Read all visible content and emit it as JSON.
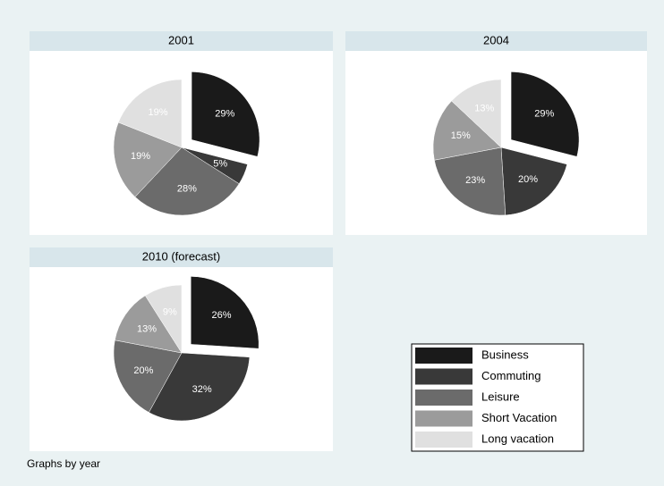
{
  "chart_data": [
    {
      "type": "pie",
      "title": "2001",
      "categories": [
        "Business",
        "Commuting",
        "Leisure",
        "Short Vacation",
        "Long vacation"
      ],
      "values": [
        29,
        5,
        28,
        19,
        19
      ],
      "value_labels": [
        "29%",
        "5%",
        "28%",
        "19%",
        "19%"
      ],
      "colors": [
        "#1a1a1a",
        "#393939",
        "#6b6b6b",
        "#9b9b9b",
        "#e0e0e0"
      ],
      "explode": [
        true,
        false,
        false,
        false,
        false
      ]
    },
    {
      "type": "pie",
      "title": "2004",
      "categories": [
        "Business",
        "Commuting",
        "Leisure",
        "Short Vacation",
        "Long vacation"
      ],
      "values": [
        29,
        20,
        23,
        15,
        13
      ],
      "value_labels": [
        "29%",
        "20%",
        "23%",
        "15%",
        "13%"
      ],
      "colors": [
        "#1a1a1a",
        "#393939",
        "#6b6b6b",
        "#9b9b9b",
        "#e0e0e0"
      ],
      "explode": [
        true,
        false,
        false,
        false,
        false
      ]
    },
    {
      "type": "pie",
      "title": "2010 (forecast)",
      "categories": [
        "Business",
        "Commuting",
        "Leisure",
        "Short Vacation",
        "Long vacation"
      ],
      "values": [
        26,
        32,
        20,
        13,
        9
      ],
      "value_labels": [
        "26%",
        "32%",
        "20%",
        "13%",
        "9%"
      ],
      "colors": [
        "#1a1a1a",
        "#393939",
        "#6b6b6b",
        "#9b9b9b",
        "#e0e0e0"
      ],
      "explode": [
        true,
        false,
        false,
        false,
        false
      ]
    }
  ],
  "note": "Graphs by year"
}
